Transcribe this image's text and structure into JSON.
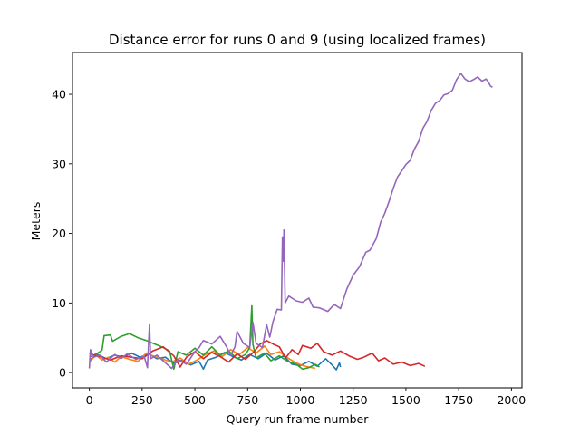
{
  "chart_data": {
    "type": "line",
    "title": "Distance error for runs 0 and 9 (using localized frames)",
    "xlabel": "Query run frame number",
    "ylabel": "Meters",
    "xlim": [
      -80,
      2050
    ],
    "ylim": [
      -2.2,
      46
    ],
    "x_ticks": [
      0,
      250,
      500,
      750,
      1000,
      1250,
      1500,
      1750,
      2000
    ],
    "y_ticks": [
      0,
      10,
      20,
      30,
      40
    ],
    "grid": false,
    "legend": "none",
    "series": [
      {
        "color": "#1f77b4",
        "points": [
          [
            0,
            1.8
          ],
          [
            40,
            2.6
          ],
          [
            80,
            2.0
          ],
          [
            120,
            2.5
          ],
          [
            160,
            2.2
          ],
          [
            200,
            2.8
          ],
          [
            240,
            2.2
          ],
          [
            280,
            2.7
          ],
          [
            320,
            2.0
          ],
          [
            360,
            2.2
          ],
          [
            400,
            1.3
          ],
          [
            440,
            1.8
          ],
          [
            480,
            1.1
          ],
          [
            520,
            1.6
          ],
          [
            540,
            0.5
          ],
          [
            560,
            1.8
          ],
          [
            600,
            2.2
          ],
          [
            640,
            2.9
          ],
          [
            680,
            2.3
          ],
          [
            720,
            1.8
          ],
          [
            760,
            2.6
          ],
          [
            800,
            2.0
          ],
          [
            840,
            2.8
          ],
          [
            880,
            1.8
          ],
          [
            920,
            2.4
          ],
          [
            960,
            1.2
          ],
          [
            1000,
            1.0
          ],
          [
            1040,
            1.6
          ],
          [
            1080,
            0.9
          ],
          [
            1120,
            2.0
          ],
          [
            1150,
            1.1
          ],
          [
            1170,
            0.4
          ],
          [
            1185,
            1.4
          ],
          [
            1190,
            0.8
          ]
        ]
      },
      {
        "color": "#ff7f0e",
        "points": [
          [
            0,
            1.5
          ],
          [
            30,
            2.5
          ],
          [
            60,
            1.8
          ],
          [
            90,
            2.2
          ],
          [
            120,
            1.5
          ],
          [
            150,
            2.3
          ],
          [
            190,
            1.9
          ],
          [
            230,
            1.6
          ],
          [
            270,
            2.8
          ],
          [
            310,
            2.3
          ],
          [
            350,
            1.9
          ],
          [
            390,
            1.5
          ],
          [
            430,
            2.1
          ],
          [
            470,
            1.2
          ],
          [
            510,
            1.8
          ],
          [
            550,
            2.6
          ],
          [
            590,
            3.1
          ],
          [
            630,
            2.3
          ],
          [
            670,
            3.3
          ],
          [
            710,
            2.6
          ],
          [
            750,
            3.6
          ],
          [
            790,
            2.8
          ],
          [
            830,
            3.8
          ],
          [
            860,
            2.6
          ],
          [
            900,
            3.0
          ],
          [
            940,
            2.1
          ],
          [
            980,
            1.4
          ],
          [
            1010,
            1.0
          ],
          [
            1040,
            0.8
          ],
          [
            1070,
            0.6
          ]
        ]
      },
      {
        "color": "#2ca02c",
        "points": [
          [
            0,
            2.2
          ],
          [
            40,
            2.8
          ],
          [
            60,
            3.2
          ],
          [
            70,
            5.3
          ],
          [
            100,
            5.4
          ],
          [
            110,
            4.5
          ],
          [
            150,
            5.2
          ],
          [
            190,
            5.6
          ],
          [
            230,
            5.0
          ],
          [
            270,
            4.6
          ],
          [
            310,
            4.1
          ],
          [
            350,
            3.6
          ],
          [
            380,
            3.1
          ],
          [
            400,
            0.5
          ],
          [
            420,
            3.0
          ],
          [
            460,
            2.5
          ],
          [
            500,
            3.5
          ],
          [
            540,
            2.5
          ],
          [
            580,
            3.7
          ],
          [
            620,
            2.5
          ],
          [
            660,
            3.1
          ],
          [
            700,
            2.0
          ],
          [
            740,
            2.6
          ],
          [
            760,
            3.6
          ],
          [
            770,
            9.6
          ],
          [
            775,
            4.0
          ],
          [
            790,
            2.1
          ],
          [
            830,
            2.8
          ],
          [
            860,
            1.7
          ],
          [
            900,
            2.4
          ],
          [
            940,
            1.6
          ],
          [
            980,
            1.2
          ],
          [
            1010,
            0.5
          ],
          [
            1040,
            0.7
          ],
          [
            1070,
            1.2
          ],
          [
            1090,
            0.8
          ]
        ]
      },
      {
        "color": "#d62728",
        "points": [
          [
            0,
            2.7
          ],
          [
            50,
            2.3
          ],
          [
            100,
            1.8
          ],
          [
            150,
            2.4
          ],
          [
            200,
            2.2
          ],
          [
            250,
            2.0
          ],
          [
            300,
            3.1
          ],
          [
            350,
            3.7
          ],
          [
            400,
            2.4
          ],
          [
            430,
            0.8
          ],
          [
            460,
            2.2
          ],
          [
            500,
            3.0
          ],
          [
            540,
            2.0
          ],
          [
            580,
            2.9
          ],
          [
            620,
            2.3
          ],
          [
            660,
            1.5
          ],
          [
            700,
            2.7
          ],
          [
            740,
            1.9
          ],
          [
            780,
            3.0
          ],
          [
            810,
            4.1
          ],
          [
            840,
            4.6
          ],
          [
            870,
            4.1
          ],
          [
            900,
            3.7
          ],
          [
            930,
            2.1
          ],
          [
            960,
            3.3
          ],
          [
            990,
            2.6
          ],
          [
            1010,
            3.9
          ],
          [
            1050,
            3.5
          ],
          [
            1080,
            4.2
          ],
          [
            1110,
            3.0
          ],
          [
            1150,
            2.5
          ],
          [
            1190,
            3.1
          ],
          [
            1230,
            2.4
          ],
          [
            1270,
            1.9
          ],
          [
            1300,
            2.2
          ],
          [
            1340,
            2.8
          ],
          [
            1370,
            1.7
          ],
          [
            1400,
            2.1
          ],
          [
            1440,
            1.2
          ],
          [
            1480,
            1.5
          ],
          [
            1520,
            1.0
          ],
          [
            1560,
            1.3
          ],
          [
            1590,
            0.9
          ]
        ]
      },
      {
        "color": "#9467bd",
        "points": [
          [
            0,
            0.6
          ],
          [
            5,
            3.3
          ],
          [
            20,
            2.2
          ],
          [
            50,
            2.5
          ],
          [
            80,
            1.5
          ],
          [
            120,
            2.6
          ],
          [
            150,
            2.0
          ],
          [
            180,
            2.7
          ],
          [
            220,
            1.9
          ],
          [
            260,
            2.3
          ],
          [
            275,
            0.7
          ],
          [
            285,
            7.0
          ],
          [
            290,
            2.0
          ],
          [
            320,
            2.5
          ],
          [
            360,
            1.4
          ],
          [
            390,
            0.6
          ],
          [
            420,
            1.9
          ],
          [
            460,
            1.2
          ],
          [
            500,
            3.0
          ],
          [
            520,
            3.6
          ],
          [
            540,
            4.6
          ],
          [
            580,
            4.1
          ],
          [
            620,
            5.2
          ],
          [
            650,
            3.7
          ],
          [
            670,
            2.5
          ],
          [
            690,
            3.7
          ],
          [
            700,
            5.9
          ],
          [
            730,
            4.2
          ],
          [
            760,
            3.6
          ],
          [
            775,
            7.2
          ],
          [
            790,
            4.2
          ],
          [
            820,
            3.6
          ],
          [
            840,
            6.9
          ],
          [
            855,
            5.1
          ],
          [
            870,
            7.3
          ],
          [
            890,
            9.1
          ],
          [
            910,
            9.0
          ],
          [
            915,
            19.5
          ],
          [
            920,
            16.0
          ],
          [
            922,
            20.5
          ],
          [
            928,
            10.0
          ],
          [
            945,
            11.0
          ],
          [
            980,
            10.3
          ],
          [
            1010,
            10.1
          ],
          [
            1040,
            10.7
          ],
          [
            1060,
            9.4
          ],
          [
            1090,
            9.3
          ],
          [
            1130,
            8.8
          ],
          [
            1160,
            9.8
          ],
          [
            1190,
            9.2
          ],
          [
            1220,
            12.0
          ],
          [
            1250,
            14.0
          ],
          [
            1280,
            15.2
          ],
          [
            1310,
            17.3
          ],
          [
            1330,
            17.6
          ],
          [
            1360,
            19.3
          ],
          [
            1380,
            21.6
          ],
          [
            1400,
            22.9
          ],
          [
            1420,
            24.6
          ],
          [
            1440,
            26.5
          ],
          [
            1460,
            28.1
          ],
          [
            1480,
            29.0
          ],
          [
            1500,
            29.9
          ],
          [
            1520,
            30.5
          ],
          [
            1540,
            32.1
          ],
          [
            1560,
            33.2
          ],
          [
            1580,
            35.1
          ],
          [
            1600,
            36.1
          ],
          [
            1620,
            37.7
          ],
          [
            1640,
            38.7
          ],
          [
            1660,
            39.1
          ],
          [
            1680,
            39.9
          ],
          [
            1700,
            40.1
          ],
          [
            1720,
            40.6
          ],
          [
            1740,
            42.1
          ],
          [
            1760,
            43.0
          ],
          [
            1780,
            42.2
          ],
          [
            1800,
            41.8
          ],
          [
            1820,
            42.1
          ],
          [
            1840,
            42.5
          ],
          [
            1860,
            41.9
          ],
          [
            1880,
            42.2
          ],
          [
            1890,
            41.8
          ],
          [
            1900,
            41.2
          ],
          [
            1910,
            41.0
          ]
        ]
      }
    ]
  }
}
